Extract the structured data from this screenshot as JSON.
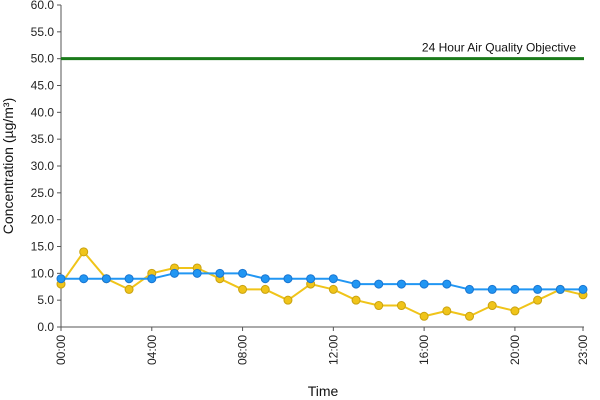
{
  "chart_data": {
    "type": "line",
    "xlabel": "Time",
    "ylabel": "Concentration (µg/m³)",
    "x": [
      "00:00",
      "01:00",
      "02:00",
      "03:00",
      "04:00",
      "05:00",
      "06:00",
      "07:00",
      "08:00",
      "09:00",
      "10:00",
      "11:00",
      "12:00",
      "13:00",
      "14:00",
      "15:00",
      "16:00",
      "17:00",
      "18:00",
      "19:00",
      "20:00",
      "21:00",
      "22:00",
      "23:00"
    ],
    "x_tick_labels": [
      "00:00",
      "04:00",
      "08:00",
      "12:00",
      "16:00",
      "20:00",
      "23:00"
    ],
    "x_tick_indices": [
      0,
      4,
      8,
      12,
      16,
      20,
      23
    ],
    "ylim": [
      0,
      60
    ],
    "y_ticks": [
      "0.0",
      "5.0",
      "10.0",
      "15.0",
      "20.0",
      "25.0",
      "30.0",
      "35.0",
      "40.0",
      "45.0",
      "50.0",
      "55.0",
      "60.0"
    ],
    "grid": false,
    "series": [
      {
        "color": "#2196F3",
        "values": [
          9,
          9,
          9,
          9,
          9,
          10,
          10,
          10,
          10,
          9,
          9,
          9,
          9,
          8,
          8,
          8,
          8,
          8,
          7,
          7,
          7,
          7,
          7,
          7
        ]
      },
      {
        "color": "#F0C419",
        "values": [
          8,
          14,
          9,
          7,
          10,
          11,
          11,
          9,
          7,
          7,
          5,
          8,
          7,
          5,
          4,
          4,
          2,
          3,
          2,
          4,
          3,
          5,
          7,
          6
        ]
      }
    ],
    "reference_line": {
      "value": 50,
      "label": "24 Hour Air Quality Objective",
      "color": "#1a7a1a"
    }
  }
}
